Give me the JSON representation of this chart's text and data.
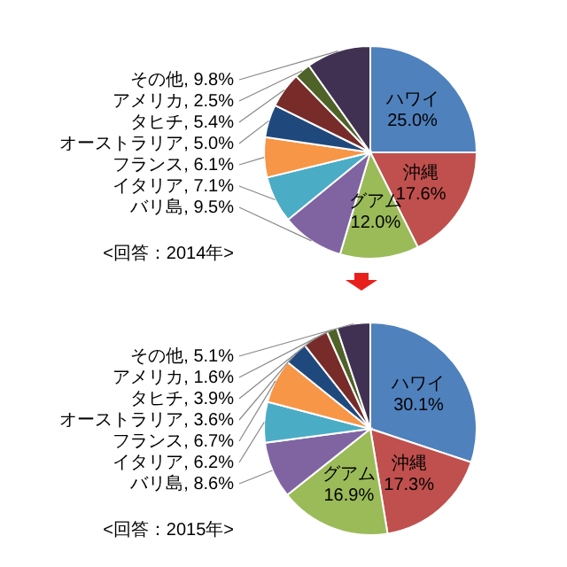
{
  "chart_data": [
    {
      "type": "pie",
      "categories": [
        "ハワイ",
        "沖縄",
        "グアム",
        "バリ島",
        "イタリア",
        "フランス",
        "オーストラリア",
        "タヒチ",
        "アメリカ",
        "その他"
      ],
      "values": [
        25.0,
        17.6,
        12.0,
        9.5,
        7.1,
        6.1,
        5.0,
        5.4,
        2.5,
        9.8
      ],
      "colors": [
        "#4f81bd",
        "#c0504d",
        "#9bbb59",
        "#8064a2",
        "#4bacc6",
        "#f79646",
        "#1f497d",
        "#772c2a",
        "#4f6228",
        "#403152"
      ],
      "value_labels": [
        "25.0%",
        "17.6%",
        "12.0%",
        "9.5%",
        "7.1%",
        "6.1%",
        "5.0%",
        "5.4%",
        "2.5%",
        "9.8%"
      ],
      "annotations": [
        "<回答：2014年>"
      ]
    },
    {
      "type": "pie",
      "categories": [
        "ハワイ",
        "沖縄",
        "グアム",
        "バリ島",
        "イタリア",
        "フランス",
        "オーストラリア",
        "タヒチ",
        "アメリカ",
        "その他"
      ],
      "values": [
        30.1,
        17.3,
        16.9,
        8.6,
        6.2,
        6.7,
        3.6,
        3.9,
        1.6,
        5.1
      ],
      "colors": [
        "#4f81bd",
        "#c0504d",
        "#9bbb59",
        "#8064a2",
        "#4bacc6",
        "#f79646",
        "#1f497d",
        "#772c2a",
        "#4f6228",
        "#403152"
      ],
      "value_labels": [
        "30.1%",
        "17.3%",
        "16.9%",
        "8.6%",
        "6.2%",
        "6.7%",
        "3.6%",
        "3.9%",
        "1.6%",
        "5.1%"
      ],
      "annotations": [
        "<回答：2015年>"
      ]
    }
  ]
}
